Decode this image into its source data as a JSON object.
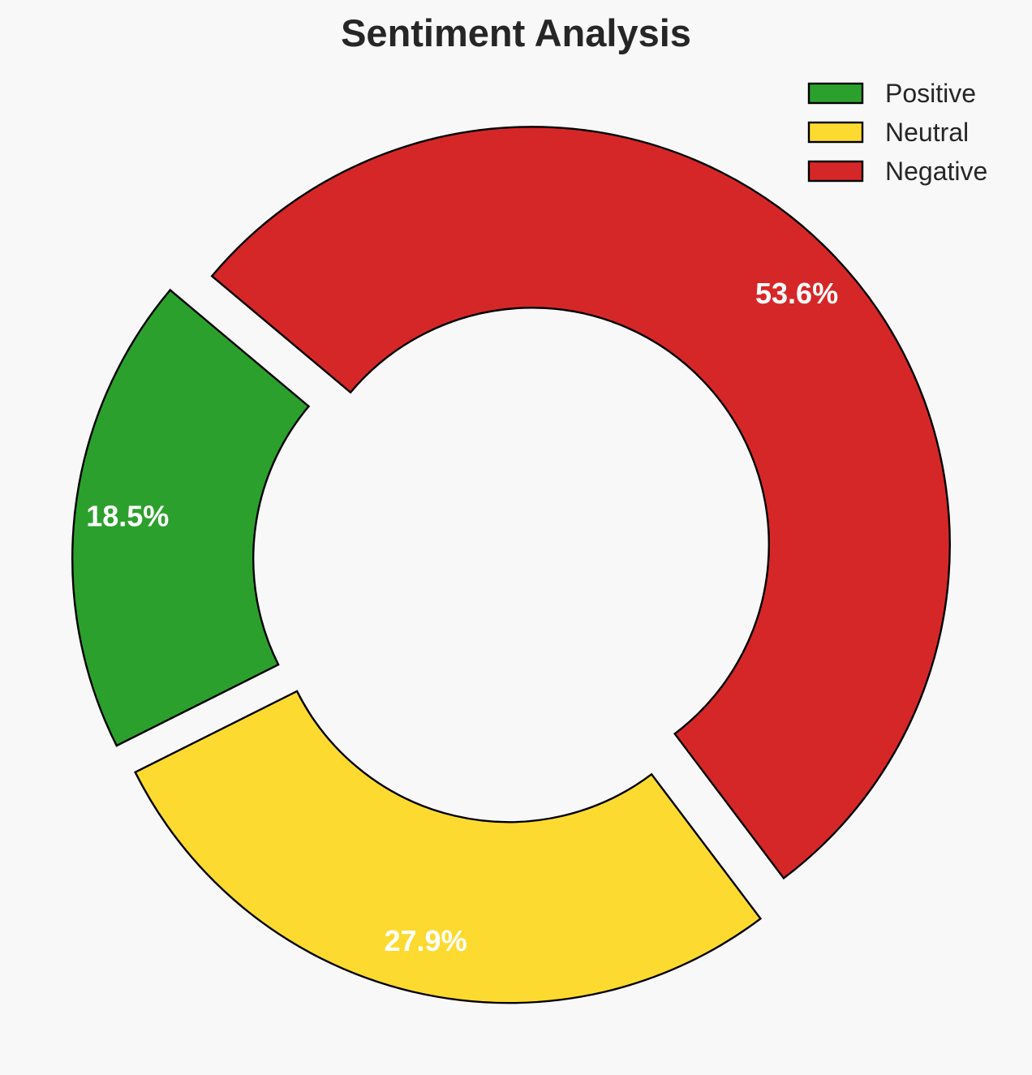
{
  "chart_data": {
    "type": "pie",
    "title": "Sentiment Analysis",
    "donut": true,
    "exploded": true,
    "start_angle_deg": 140,
    "direction": "counterclockwise",
    "slices": [
      {
        "name": "Positive",
        "value": 18.5,
        "label": "18.5%",
        "color": "#2ca02c"
      },
      {
        "name": "Neutral",
        "value": 27.9,
        "label": "27.9%",
        "color": "#fdda30"
      },
      {
        "name": "Negative",
        "value": 53.6,
        "label": "53.6%",
        "color": "#d62728"
      }
    ],
    "legend": {
      "position": "top-right",
      "entries": [
        "Positive",
        "Neutral",
        "Negative"
      ]
    },
    "label_color": "#ffffff",
    "edge_color": "#000000",
    "background": "#f8f8f8"
  }
}
